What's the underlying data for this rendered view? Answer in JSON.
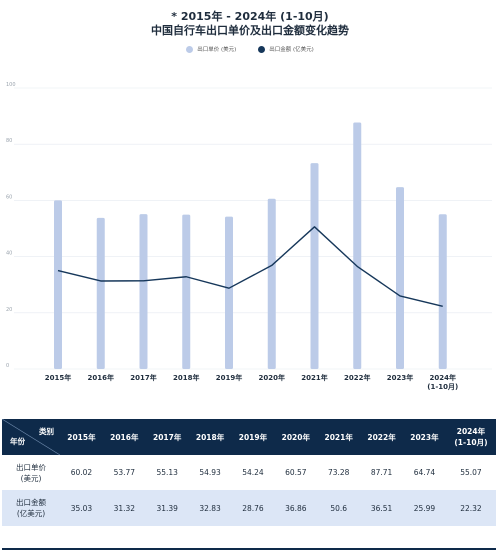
{
  "title_line1": "* 2015年 - 2024年 (1-10月)",
  "title_line2": "中国自行车出口单价及出口金额变化趋势",
  "legend": [
    {
      "label": "出口单价 (美元)",
      "color": "#bccbe8"
    },
    {
      "label": "出口金额 (亿美元)",
      "color": "#16375a"
    }
  ],
  "chart_data": {
    "type": "bar",
    "categories": [
      "2015年",
      "2016年",
      "2017年",
      "2018年",
      "2019年",
      "2020年",
      "2021年",
      "2022年",
      "2023年",
      "2024年\n(1-10月)"
    ],
    "series": [
      {
        "name": "出口单价 (美元)",
        "type": "bar",
        "color": "#bccbe8",
        "values": [
          60.02,
          53.77,
          55.13,
          54.93,
          54.24,
          60.57,
          73.28,
          87.71,
          64.74,
          55.07
        ]
      },
      {
        "name": "出口金额 (亿美元)",
        "type": "line",
        "color": "#16375a",
        "values": [
          35.03,
          31.32,
          31.39,
          32.83,
          28.76,
          36.86,
          50.6,
          36.51,
          25.99,
          22.32
        ]
      }
    ],
    "yticks": [
      "0",
      "20",
      "40",
      "60",
      "80",
      "100"
    ],
    "ylim": [
      0,
      100
    ],
    "grid": true
  },
  "table": {
    "corner_top": "类别",
    "corner_bottom": "年份",
    "columns": [
      "2015年",
      "2016年",
      "2017年",
      "2018年",
      "2019年",
      "2020年",
      "2021年",
      "2022年",
      "2023年"
    ],
    "last_column_line1": "2024年",
    "last_column_line2": "(1-10月)",
    "row1_label1": "出口单价",
    "row1_label2": "(美元)",
    "row2_label1": "出口金额",
    "row2_label2": "(亿美元)",
    "row1": [
      "60.02",
      "53.77",
      "55.13",
      "54.93",
      "54.24",
      "60.57",
      "73.28",
      "87.71",
      "64.74",
      "55.07"
    ],
    "row2": [
      "35.03",
      "31.32",
      "31.39",
      "32.83",
      "28.76",
      "36.86",
      "50.6",
      "36.51",
      "25.99",
      "22.32"
    ]
  }
}
